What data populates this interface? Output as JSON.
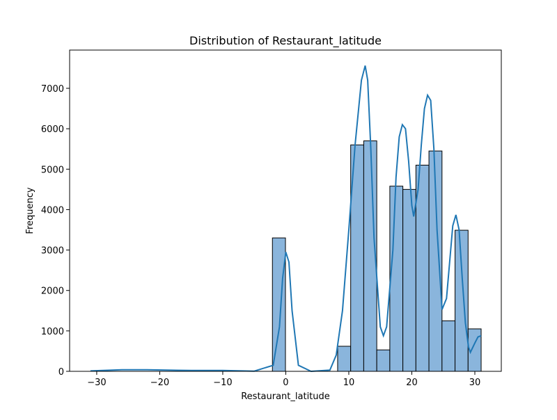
{
  "chart_data": {
    "type": "histogram",
    "title": "Distribution of Restaurant_latitude",
    "x_label": "Restaurant_latitude",
    "y_label": "Frequency",
    "bins": [
      -31.1,
      -29.03,
      -26.96,
      -24.89,
      -22.82,
      -20.75,
      -18.68,
      -16.61,
      -14.54,
      -12.47,
      -10.4,
      -8.33,
      -6.26,
      -4.19,
      -2.12,
      -0.05,
      2.02,
      4.09,
      6.16,
      8.23,
      10.3,
      12.37,
      14.44,
      16.51,
      18.58,
      20.65,
      22.72,
      24.79,
      26.86,
      28.93,
      31.0
    ],
    "counts": [
      0,
      0,
      0,
      0,
      0,
      0,
      0,
      0,
      0,
      0,
      0,
      0,
      0,
      0,
      3300,
      0,
      0,
      0,
      0,
      620,
      5600,
      5700,
      530,
      4580,
      4500,
      5100,
      5450,
      1250,
      3490,
      1050
    ],
    "color": "#8ab5dc",
    "edge_color": "#000000",
    "kde": {
      "color": "#1f77b4",
      "x": [
        -31,
        -26,
        -22,
        -15,
        -10,
        -5,
        -2,
        -1,
        -0.5,
        0,
        0.5,
        1,
        2,
        4,
        7,
        8,
        9,
        10,
        11,
        12,
        12.6,
        13,
        13.5,
        14,
        15,
        15.5,
        16,
        17,
        17.5,
        18,
        18.5,
        19,
        19.5,
        20,
        20.3,
        21,
        21.5,
        22,
        22.5,
        23,
        23.5,
        24,
        24.8,
        25.5,
        26,
        26.5,
        27,
        27.5,
        28,
        28.5,
        29,
        29.3,
        30,
        30.5,
        31
      ],
      "y": [
        10,
        40,
        40,
        20,
        20,
        5,
        150,
        1100,
        2300,
        2950,
        2700,
        1500,
        150,
        0,
        30,
        400,
        1500,
        3500,
        5600,
        7200,
        7560,
        7200,
        5500,
        3300,
        1100,
        880,
        1100,
        3000,
        4800,
        5800,
        6100,
        6000,
        5200,
        4100,
        3830,
        4500,
        5600,
        6500,
        6830,
        6700,
        5500,
        3500,
        1530,
        1800,
        2700,
        3600,
        3870,
        3500,
        2300,
        1200,
        600,
        470,
        700,
        850,
        880
      ]
    },
    "xlim": [
      -34.3,
      34.2
    ],
    "ylim": [
      0,
      7946
    ],
    "xticks": [
      {
        "value": -30,
        "label": "−30"
      },
      {
        "value": -20,
        "label": "−20"
      },
      {
        "value": -10,
        "label": "−10"
      },
      0,
      10,
      20,
      30
    ],
    "yticks": [
      0,
      1000,
      2000,
      3000,
      4000,
      5000,
      6000,
      7000
    ]
  }
}
